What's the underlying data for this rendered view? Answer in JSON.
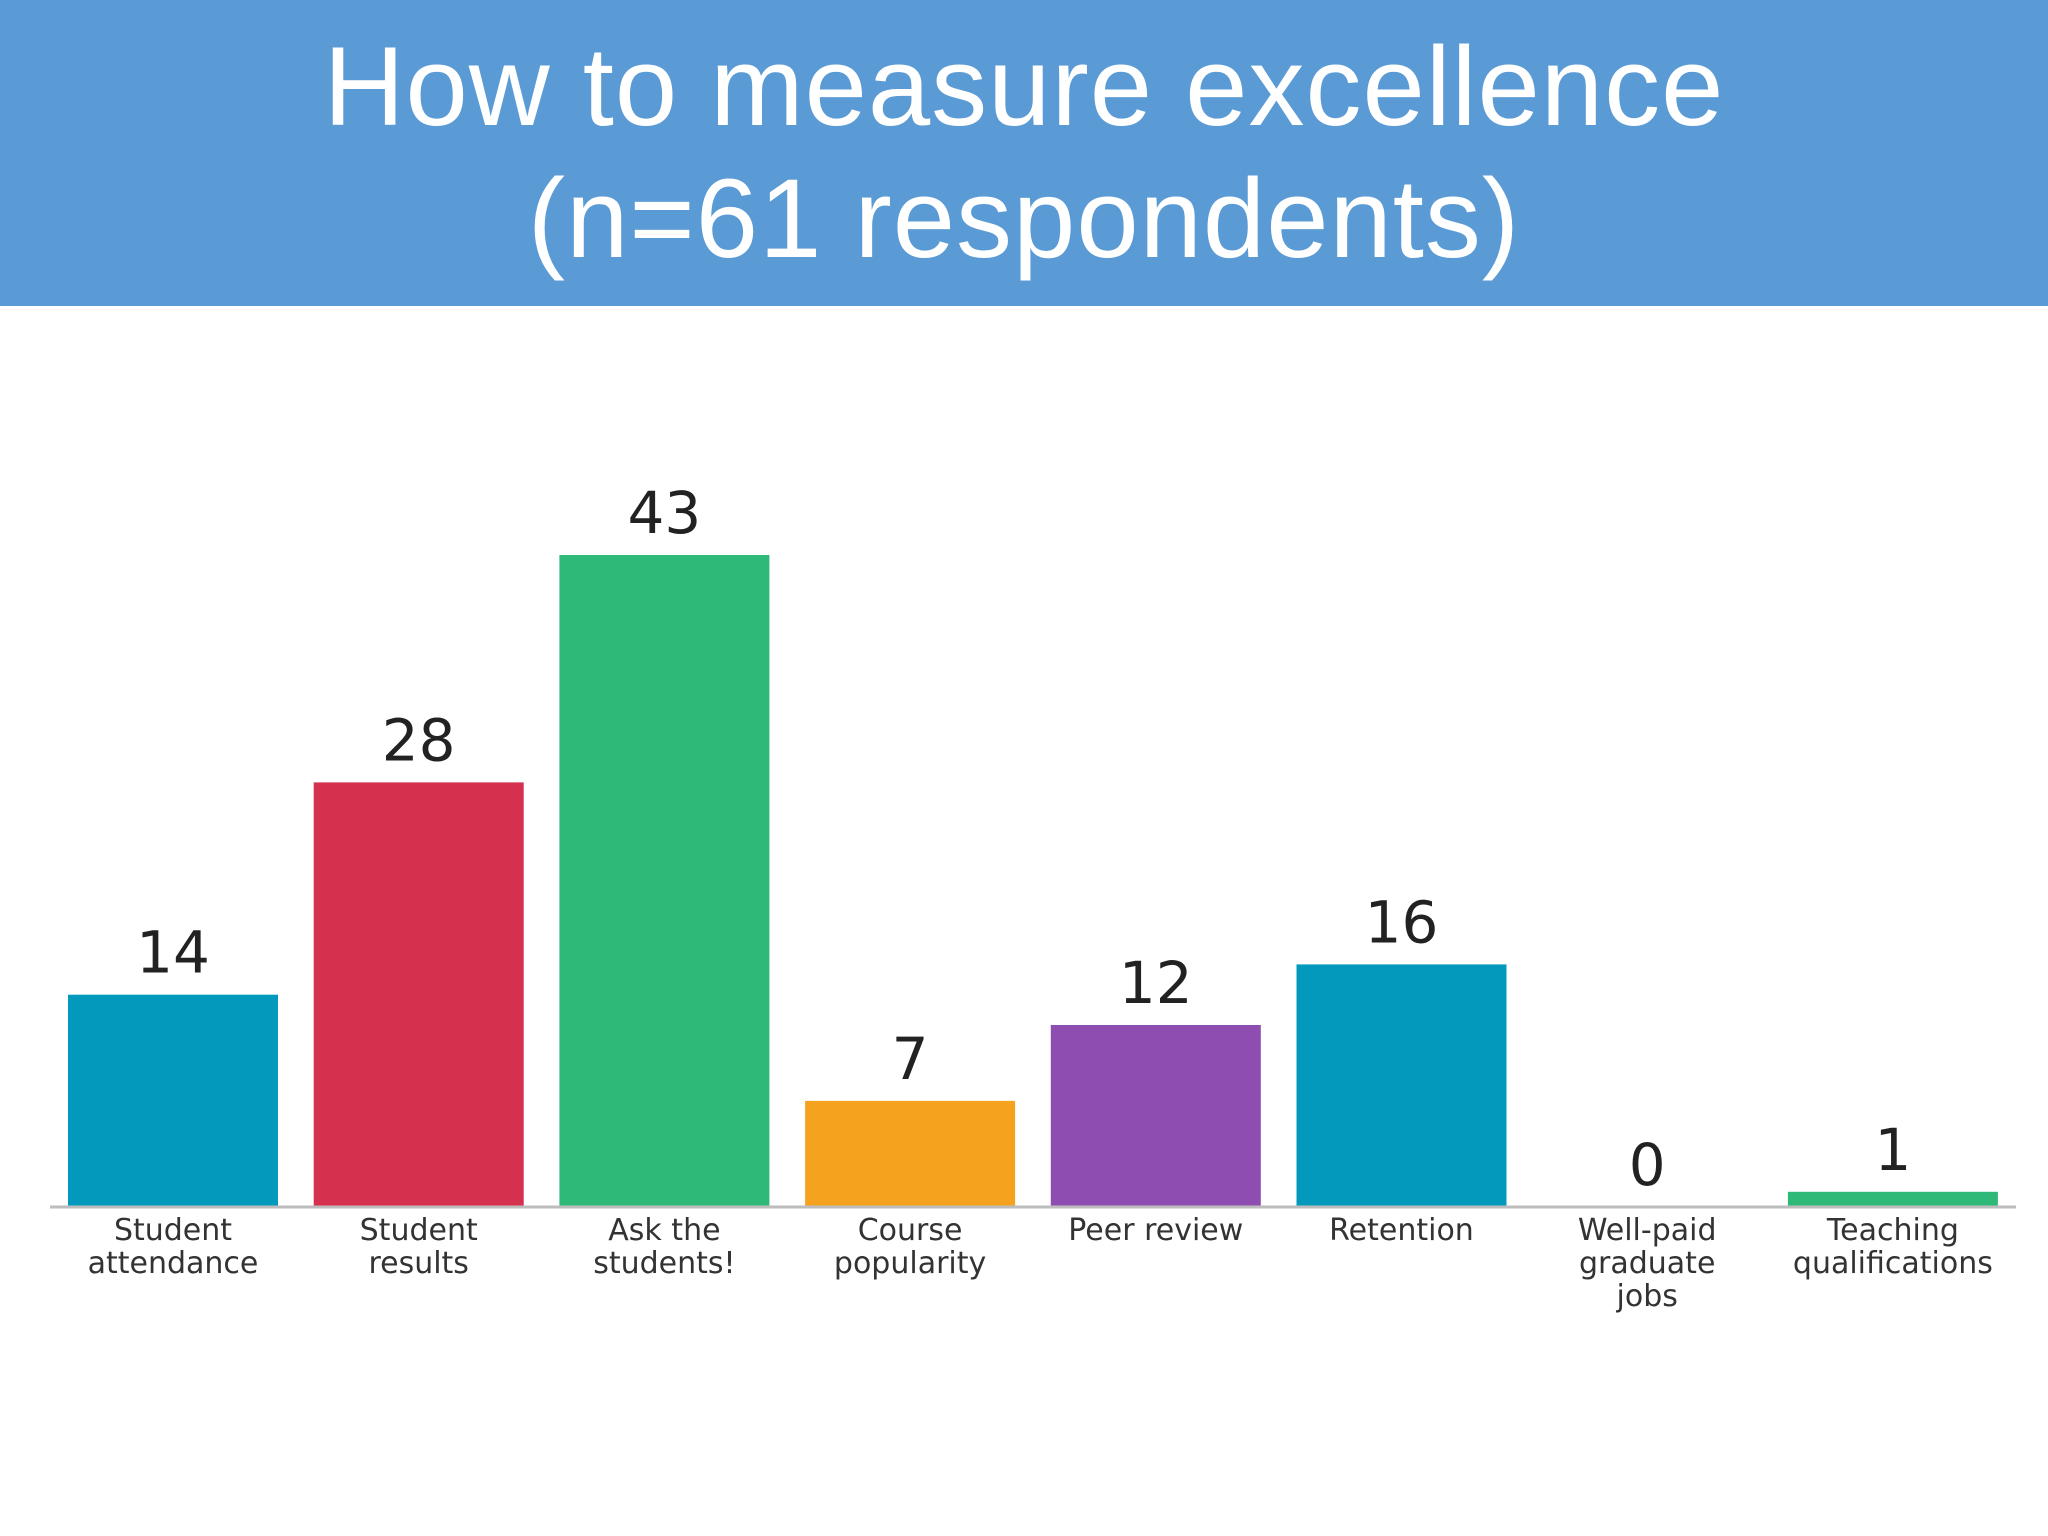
{
  "header": {
    "title_line1": "How to measure excellence",
    "title_line2": "(n=61 respondents)",
    "background_color": "#5b9bd5"
  },
  "chart_data": {
    "type": "bar",
    "title": "How to measure excellence (n=61 respondents)",
    "xlabel": "",
    "ylabel": "",
    "grid": false,
    "categories": [
      [
        "Student",
        "attendance"
      ],
      [
        "Student",
        "results"
      ],
      [
        "Ask the",
        "students!"
      ],
      [
        "Course",
        "popularity"
      ],
      [
        "Peer review"
      ],
      [
        "Retention"
      ],
      [
        "Well-paid",
        "graduate",
        "jobs"
      ],
      [
        "Teaching",
        "qualifications"
      ]
    ],
    "values": [
      14,
      28,
      43,
      7,
      12,
      16,
      0,
      1
    ],
    "colors": [
      "#0399bd",
      "#d5304e",
      "#2fb978",
      "#f5a21e",
      "#8e4db0",
      "#0399bd",
      "#2fb978",
      "#2fb978"
    ],
    "ylim": [
      0,
      43
    ]
  }
}
